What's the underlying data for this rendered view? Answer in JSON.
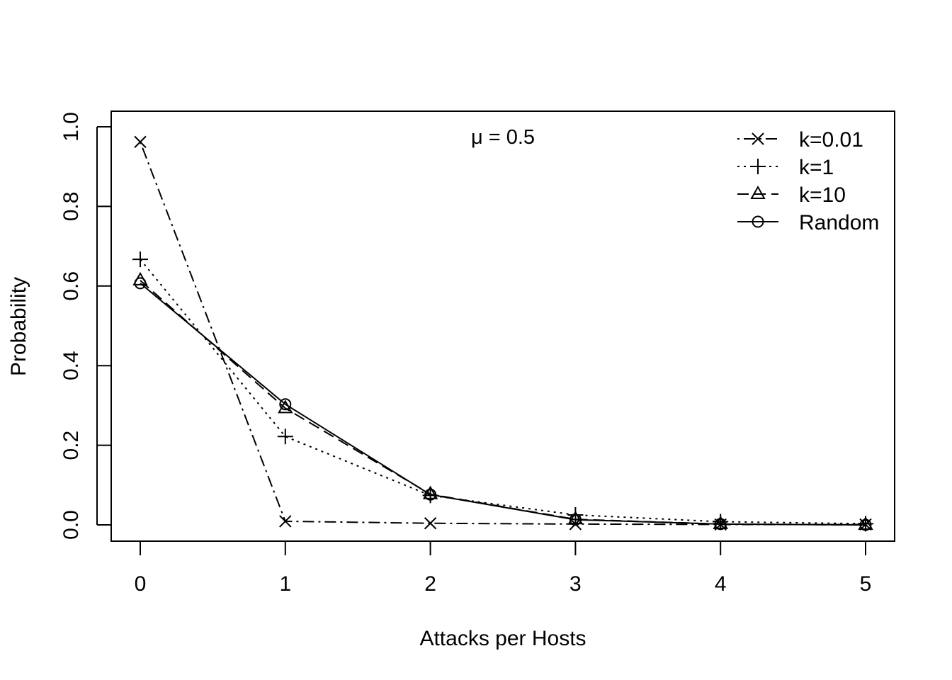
{
  "chart_data": {
    "type": "line",
    "x": [
      0,
      1,
      2,
      3,
      4,
      5
    ],
    "xlabel": "Attacks per Hosts",
    "ylabel": "Probability",
    "annotation": "μ = 0.5",
    "xlim": [
      0,
      5
    ],
    "ylim": [
      0,
      1
    ],
    "x_ticks": [
      "0",
      "1",
      "2",
      "3",
      "4",
      "5"
    ],
    "y_ticks": [
      "0.0",
      "0.2",
      "0.4",
      "0.6",
      "0.8",
      "1.0"
    ],
    "grid": false,
    "legend_position": "top-right",
    "series": [
      {
        "name": "k=0.01",
        "marker": "x",
        "line_style": "dot-dash",
        "values": [
          0.962,
          0.009,
          0.004,
          0.002,
          0.001,
          0.001
        ]
      },
      {
        "name": "k=1",
        "marker": "plus",
        "line_style": "dotted",
        "values": [
          0.667,
          0.222,
          0.074,
          0.025,
          0.008,
          0.003
        ]
      },
      {
        "name": "k=10",
        "marker": "triangle",
        "line_style": "dashed",
        "values": [
          0.614,
          0.293,
          0.077,
          0.014,
          0.002,
          0.0
        ]
      },
      {
        "name": "Random",
        "marker": "circle",
        "line_style": "solid",
        "values": [
          0.607,
          0.303,
          0.076,
          0.013,
          0.002,
          0.0
        ]
      }
    ]
  }
}
